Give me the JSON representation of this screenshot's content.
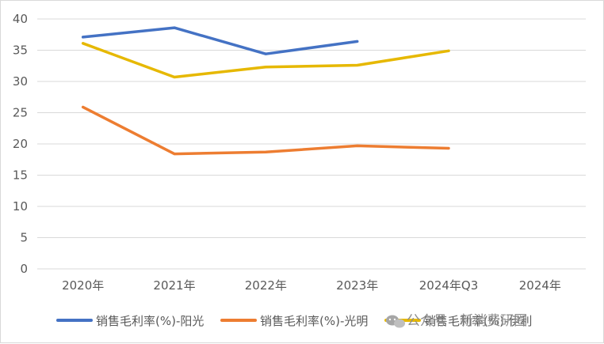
{
  "chart_data": {
    "type": "line",
    "title": "",
    "xlabel": "",
    "ylabel": "",
    "categories": [
      "2020年",
      "2021年",
      "2022年",
      "2023年",
      "2024年Q3",
      "2024年"
    ],
    "ylim": [
      0,
      40
    ],
    "yticks": [
      0,
      5,
      10,
      15,
      20,
      25,
      30,
      35,
      40
    ],
    "grid": true,
    "legend_position": "bottom",
    "series": [
      {
        "name": "销售毛利率(%)-阳光",
        "color": "#4472c4",
        "values": [
          37.1,
          38.6,
          34.4,
          36.4,
          null,
          null
        ]
      },
      {
        "name": "销售毛利率(%)-光明",
        "color": "#ed7d31",
        "values": [
          25.9,
          18.4,
          18.7,
          19.7,
          19.3,
          null
        ]
      },
      {
        "name": "销售毛利率(%)-伊利",
        "color": "#e6b800",
        "values": [
          36.1,
          30.7,
          32.3,
          32.6,
          34.9,
          null
        ]
      }
    ]
  },
  "watermark": {
    "text": "公众号 · 新消费研圈",
    "icon": "wechat-icon"
  }
}
